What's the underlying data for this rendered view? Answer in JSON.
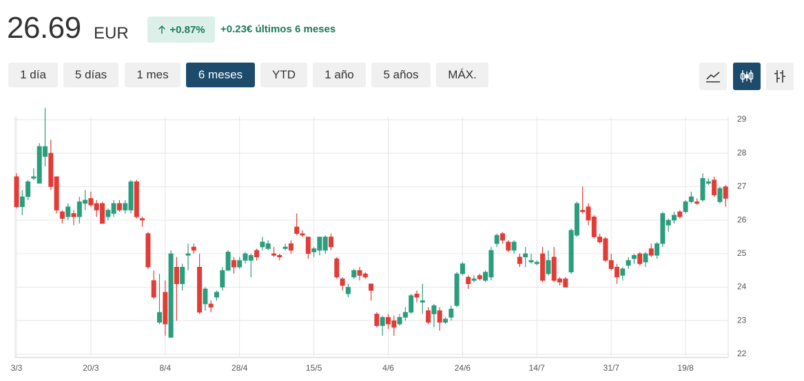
{
  "header": {
    "price": "26.69",
    "currency": "EUR",
    "change_percent": "+0.87%",
    "change_text": "+0.23€ últimos 6 meses"
  },
  "ranges": [
    "1 día",
    "5 días",
    "1 mes",
    "6 meses",
    "YTD",
    "1 año",
    "5 años",
    "MÁX."
  ],
  "selected_range": "6 meses",
  "chart_data": {
    "type": "candlestick",
    "categories": [
      "3/3",
      null,
      null,
      null,
      null,
      null,
      null,
      null,
      null,
      null,
      null,
      null,
      null,
      "20/3",
      null,
      null,
      null,
      null,
      null,
      null,
      null,
      null,
      null,
      null,
      null,
      null,
      "8/4",
      null,
      null,
      null,
      null,
      null,
      null,
      null,
      null,
      null,
      null,
      null,
      null,
      "28/4",
      null,
      null,
      null,
      null,
      null,
      null,
      null,
      null,
      null,
      null,
      null,
      null,
      "15/5",
      null,
      null,
      null,
      null,
      null,
      null,
      null,
      null,
      null,
      null,
      null,
      null,
      "4/6",
      null,
      null,
      null,
      null,
      null,
      null,
      null,
      null,
      null,
      null,
      null,
      null,
      "24/6",
      null,
      null,
      null,
      null,
      null,
      null,
      null,
      null,
      null,
      null,
      null,
      null,
      "14/7",
      null,
      null,
      null,
      null,
      null,
      null,
      null,
      null,
      null,
      null,
      null,
      null,
      "31/7",
      null,
      null,
      null,
      null,
      null,
      null,
      null,
      null,
      null,
      null,
      null,
      null,
      "19/8",
      null,
      null,
      null,
      null,
      null,
      null,
      null
    ],
    "open": [
      27.3,
      26.4,
      26.7,
      27.25,
      27.1,
      27.9,
      28.0,
      27.3,
      26.25,
      26.1,
      26.2,
      26.1,
      26.5,
      26.65,
      26.5,
      26.5,
      26.1,
      26.2,
      26.5,
      26.3,
      26.3,
      27.15,
      26.05,
      25.6,
      24.2,
      22.95,
      23.85,
      22.5,
      24.6,
      24.1,
      24.95,
      25.2,
      24.6,
      23.5,
      23.5,
      23.7,
      24.0,
      24.5,
      24.8,
      24.6,
      24.8,
      24.8,
      25.1,
      25.2,
      25.15,
      25.0,
      24.95,
      25.15,
      25.3,
      25.8,
      25.6,
      25.5,
      25.05,
      25.1,
      25.1,
      25.5,
      24.85,
      24.25,
      23.8,
      24.3,
      24.5,
      24.4,
      24.1,
      23.2,
      22.85,
      23.1,
      23.0,
      22.9,
      23.1,
      23.25,
      23.8,
      23.55,
      23.3,
      23.2,
      23.3,
      22.95,
      23.1,
      23.45,
      24.4,
      24.3,
      24.2,
      24.35,
      24.2,
      24.3,
      25.3,
      25.6,
      25.35,
      25.1,
      24.9,
      24.9,
      24.75,
      24.7,
      25.0,
      24.4,
      24.9,
      24.25,
      24.25,
      24.45,
      25.55,
      26.3,
      26.4,
      26.1,
      25.5,
      25.45,
      24.8,
      24.6,
      24.35,
      24.65,
      24.85,
      25.0,
      24.75,
      25.15,
      24.95,
      25.3,
      25.85,
      26.0,
      26.25,
      26.25,
      26.55,
      26.55,
      26.6,
      27.1,
      27.2,
      26.55,
      27.0
    ],
    "high": [
      27.4,
      26.9,
      27.2,
      27.55,
      28.3,
      29.35,
      28.4,
      27.3,
      26.3,
      26.5,
      26.3,
      26.7,
      26.9,
      26.85,
      26.6,
      26.55,
      26.35,
      26.6,
      26.6,
      26.6,
      27.2,
      27.2,
      26.1,
      25.65,
      24.5,
      24.4,
      24.2,
      25.1,
      24.9,
      24.7,
      25.3,
      25.3,
      25.0,
      24.0,
      23.6,
      23.9,
      24.6,
      25.1,
      24.9,
      24.9,
      25.05,
      25.0,
      25.15,
      25.5,
      25.4,
      25.2,
      25.0,
      25.3,
      25.4,
      26.2,
      25.7,
      25.5,
      25.2,
      25.5,
      25.55,
      25.6,
      24.9,
      24.3,
      24.1,
      24.55,
      24.6,
      24.45,
      24.1,
      23.25,
      23.15,
      23.2,
      23.15,
      23.2,
      23.4,
      23.8,
      23.9,
      24.1,
      23.4,
      23.5,
      23.4,
      23.1,
      23.45,
      24.45,
      24.75,
      24.35,
      24.35,
      24.4,
      24.5,
      25.2,
      25.6,
      25.65,
      25.4,
      25.4,
      25.0,
      25.2,
      25.0,
      24.8,
      25.2,
      25.1,
      25.2,
      24.3,
      24.3,
      25.75,
      26.55,
      27.0,
      26.5,
      26.15,
      25.6,
      25.5,
      25.0,
      24.7,
      24.6,
      24.9,
      25.0,
      25.05,
      25.05,
      25.3,
      25.35,
      26.25,
      26.05,
      26.25,
      26.3,
      26.6,
      26.85,
      26.65,
      27.4,
      27.25,
      27.3,
      27.0,
      27.05
    ],
    "low": [
      26.35,
      26.15,
      26.6,
      27.2,
      27.1,
      27.6,
      26.9,
      26.2,
      25.9,
      26.0,
      25.85,
      25.9,
      26.3,
      26.4,
      26.1,
      25.9,
      26.0,
      26.1,
      26.25,
      26.2,
      26.2,
      26.05,
      25.8,
      24.55,
      23.65,
      22.9,
      22.55,
      22.5,
      23.0,
      23.9,
      24.5,
      25.0,
      23.2,
      23.3,
      23.25,
      23.6,
      23.9,
      24.5,
      24.4,
      24.55,
      24.7,
      24.3,
      24.8,
      25.1,
      25.1,
      24.9,
      24.8,
      25.1,
      25.0,
      25.55,
      25.5,
      24.85,
      24.9,
      24.95,
      25.0,
      25.1,
      24.25,
      23.9,
      23.7,
      24.25,
      24.2,
      24.25,
      23.6,
      22.8,
      22.55,
      22.75,
      22.55,
      22.85,
      23.0,
      23.2,
      23.55,
      23.2,
      22.9,
      22.8,
      22.7,
      22.9,
      23.0,
      23.4,
      24.35,
      23.95,
      24.15,
      24.2,
      24.15,
      24.2,
      25.2,
      25.3,
      25.05,
      25.0,
      24.6,
      24.6,
      24.7,
      24.65,
      24.15,
      24.35,
      24.15,
      24.05,
      24.0,
      24.4,
      25.5,
      26.2,
      25.85,
      25.45,
      25.3,
      24.75,
      24.5,
      24.1,
      24.2,
      24.55,
      24.7,
      24.65,
      24.6,
      24.9,
      24.85,
      25.2,
      25.65,
      25.9,
      26.05,
      26.2,
      26.5,
      26.45,
      26.55,
      27.05,
      26.7,
      26.5,
      26.4
    ],
    "close": [
      26.4,
      26.7,
      27.15,
      27.3,
      28.2,
      28.2,
      27.0,
      26.3,
      26.05,
      26.4,
      26.1,
      26.55,
      26.6,
      26.45,
      26.3,
      25.9,
      26.3,
      26.5,
      26.3,
      26.5,
      27.15,
      26.1,
      26.0,
      24.6,
      23.7,
      23.25,
      22.9,
      25.0,
      24.1,
      24.6,
      25.0,
      25.1,
      23.25,
      23.95,
      23.4,
      23.85,
      24.5,
      25.05,
      24.6,
      24.8,
      25.0,
      24.95,
      24.9,
      25.35,
      25.3,
      24.95,
      24.9,
      25.2,
      25.1,
      25.6,
      25.55,
      25.0,
      25.15,
      25.5,
      25.5,
      25.2,
      24.3,
      24.05,
      24.0,
      24.5,
      24.35,
      24.3,
      23.9,
      22.85,
      23.1,
      22.9,
      22.8,
      23.1,
      23.25,
      23.75,
      23.7,
      23.6,
      22.95,
      23.45,
      22.95,
      23.05,
      23.35,
      24.4,
      24.7,
      24.1,
      24.25,
      24.25,
      24.45,
      25.1,
      25.55,
      25.4,
      25.1,
      25.35,
      24.7,
      25.0,
      24.8,
      24.75,
      24.2,
      24.8,
      24.2,
      24.15,
      24.0,
      25.7,
      26.5,
      26.25,
      26.0,
      25.5,
      25.35,
      24.8,
      24.55,
      24.3,
      24.55,
      24.8,
      24.95,
      24.7,
      25.0,
      24.95,
      25.3,
      26.2,
      26.0,
      26.15,
      26.1,
      26.55,
      26.7,
      26.5,
      27.25,
      27.15,
      26.75,
      26.95,
      26.65
    ],
    "up_color": "#2a9d7c",
    "down_color": "#e33b35",
    "ylim": [
      21.9,
      29.5
    ],
    "yticks": [
      22,
      23,
      24,
      25,
      26,
      27,
      28,
      29
    ],
    "grid": true
  }
}
